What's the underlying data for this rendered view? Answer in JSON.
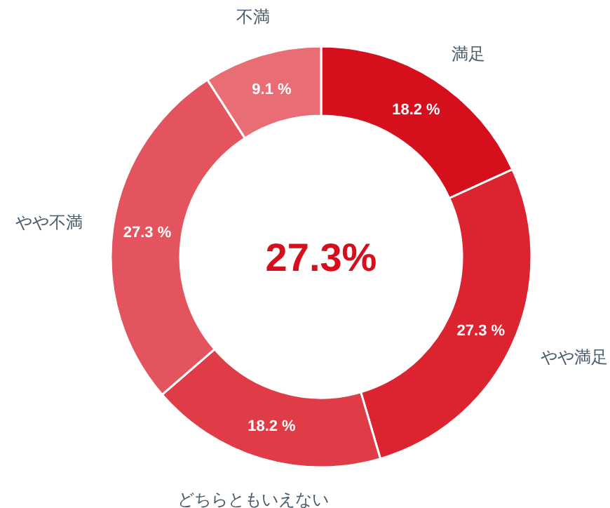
{
  "chart_data": {
    "type": "donut",
    "categories": [
      "満足",
      "やや満足",
      "どちらともいえない",
      "やや不満",
      "不満"
    ],
    "values": [
      18.2,
      27.3,
      18.2,
      27.3,
      9.1
    ],
    "value_labels": [
      "18.2 %",
      "27.3 %",
      "18.2 %",
      "27.3 %",
      "9.1 %"
    ],
    "colors": [
      "#d60f1c",
      "#dc2330",
      "#e03c48",
      "#e4545e",
      "#e86d75"
    ],
    "annotations": [
      "27.3%"
    ],
    "legend": false
  }
}
